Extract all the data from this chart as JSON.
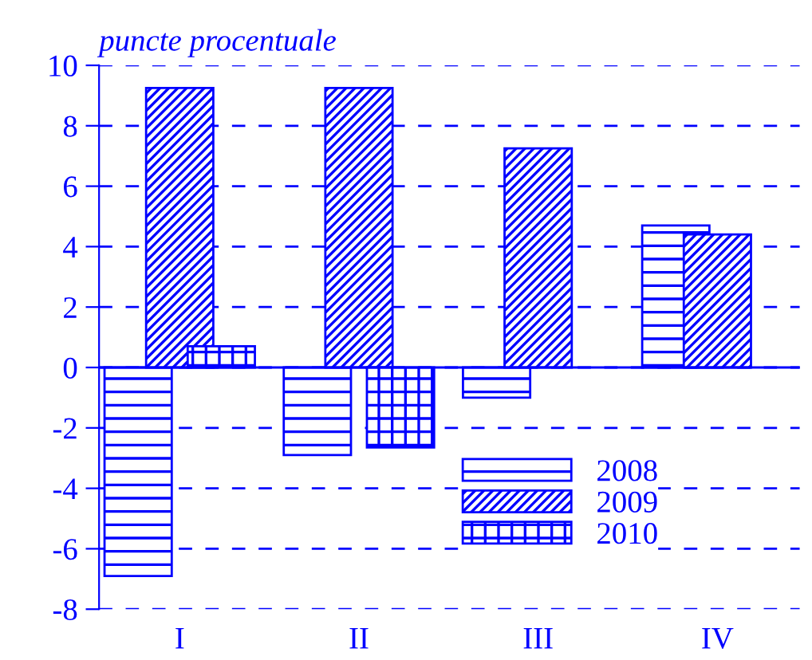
{
  "chart_data": {
    "type": "bar",
    "ylabel": "puncte procentuale",
    "categories": [
      "I",
      "II",
      "III",
      "IV"
    ],
    "series": [
      {
        "name": "2008",
        "color": "#0000ff",
        "values": [
          -6.9,
          -2.9,
          -1.0,
          4.7
        ]
      },
      {
        "name": "2009",
        "color": "#0000ff",
        "values": [
          9.25,
          9.25,
          7.25,
          4.4
        ]
      },
      {
        "name": "2010",
        "color": "#0000ff",
        "values": [
          0.7,
          -2.65,
          null,
          null
        ]
      }
    ],
    "ylim": [
      -8,
      10
    ],
    "yticks": [
      -8,
      -6,
      -4,
      -2,
      0,
      2,
      4,
      6,
      8,
      10
    ],
    "ref_lines": [
      {
        "axis": "y",
        "value": 0,
        "color": "#0000ff"
      }
    ],
    "grid": "y",
    "legend": "bottom right"
  }
}
